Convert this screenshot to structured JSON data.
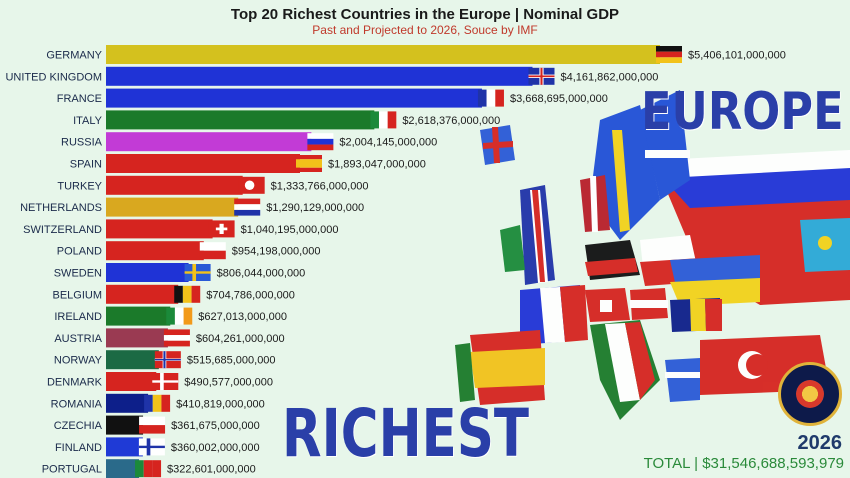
{
  "header": {
    "title": "Top 20 Richest Countries in the Europe | Nominal GDP",
    "subtitle": "Past and Projected to 2026, Souce by IMF"
  },
  "overlay": {
    "europe_word": "EUROPE",
    "richest_word": "RICHEST",
    "year": "2026",
    "total": "TOTAL | $31,546,688,593,979"
  },
  "colors": {
    "background": "#e7f6ea",
    "headline_blue": "#2a3fa8",
    "subtitle_red": "#c0392b",
    "total_green": "#2a8a3a"
  },
  "chart_data": {
    "type": "bar",
    "orientation": "horizontal",
    "title": "Top 20 Richest Countries in the Europe | Nominal GDP",
    "subtitle": "Past and Projected to 2026, Souce by IMF",
    "categories": [
      "GERMANY",
      "UNITED KINGDOM",
      "FRANCE",
      "ITALY",
      "RUSSIA",
      "SPAIN",
      "TURKEY",
      "NETHERLANDS",
      "SWITZERLAND",
      "POLAND",
      "SWEDEN",
      "BELGIUM",
      "IRELAND",
      "AUSTRIA",
      "NORWAY",
      "DENMARK",
      "ROMANIA",
      "CZECHIA",
      "FINLAND",
      "PORTUGAL"
    ],
    "values": [
      5406101000000,
      4161862000000,
      3668695000000,
      2618376000000,
      2004145000000,
      1893047000000,
      1333766000000,
      1290129000000,
      1040195000000,
      954198000000,
      806044000000,
      704786000000,
      627013000000,
      604261000000,
      515685000000,
      490577000000,
      410819000000,
      361675000000,
      360002000000,
      322601000000
    ],
    "value_labels": [
      "$5,406,101,000,000",
      "$4,161,862,000,000",
      "$3,668,695,000,000",
      "$2,618,376,000,000",
      "$2,004,145,000,000",
      "$1,893,047,000,000",
      "$1,333,766,000,000",
      "$1,290,129,000,000",
      "$1,040,195,000,000",
      "$954,198,000,000",
      "$806,044,000,000",
      "$704,786,000,000",
      "$627,013,000,000",
      "$604,261,000,000",
      "$515,685,000,000",
      "$490,577,000,000",
      "$410,819,000,000",
      "$361,675,000,000",
      "$360,002,000,000",
      "$322,601,000,000"
    ],
    "bar_colors": [
      "#d4c11e",
      "#1f33d6",
      "#1f33d6",
      "#1b7a2a",
      "#c23bd6",
      "#d6241f",
      "#d6241f",
      "#d9a81f",
      "#d6241f",
      "#d6241f",
      "#1f33d6",
      "#d6241f",
      "#1b7a2a",
      "#9a3a52",
      "#1b6a44",
      "#d6241f",
      "#0d1f8a",
      "#111111",
      "#1f3ad6",
      "#2a6a8a"
    ],
    "flag_icons": [
      "flag-germany-icon",
      "flag-uk-icon",
      "flag-france-icon",
      "flag-italy-icon",
      "flag-russia-icon",
      "flag-spain-icon",
      "flag-turkey-icon",
      "flag-netherlands-icon",
      "flag-switzerland-icon",
      "flag-poland-icon",
      "flag-sweden-icon",
      "flag-belgium-icon",
      "flag-ireland-icon",
      "flag-austria-icon",
      "flag-norway-icon",
      "flag-denmark-icon",
      "flag-romania-icon",
      "flag-czechia-icon",
      "flag-finland-icon",
      "flag-portugal-icon"
    ],
    "xlim": [
      0,
      5406101000000
    ],
    "grid": false,
    "legend": "none"
  }
}
